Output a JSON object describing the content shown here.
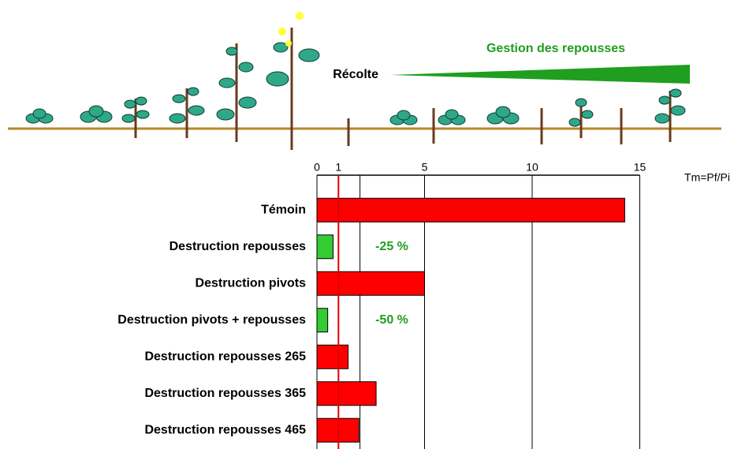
{
  "chart_data": {
    "type": "bar",
    "top_labels": {
      "harvest": "Récolte",
      "management": "Gestion des repousses",
      "management_color": "#1f9e1f"
    },
    "xlabel": "Tm=Pf/Pi",
    "categories": [
      "Témoin",
      "Destruction repousses",
      "Destruction pivots",
      "Destruction pivots + repousses",
      "Destruction repousses 265",
      "Destruction repousses 365",
      "Destruction repousses 465"
    ],
    "values": [
      14.3,
      0.75,
      5,
      0.5,
      1.45,
      2.75,
      1.95
    ],
    "colors": [
      "#ff0000",
      "#33cc33",
      "#ff0000",
      "#33cc33",
      "#ff0000",
      "#ff0000",
      "#ff0000"
    ],
    "annotations": [
      {
        "row": 1,
        "text": "-25 %"
      },
      {
        "row": 3,
        "text": "-50 %"
      }
    ],
    "annotation_color": "#1f9e1f",
    "xlim": [
      0,
      15.5
    ],
    "xticks": [
      0,
      1,
      5,
      10,
      15
    ],
    "minor_grid": [
      2
    ],
    "reference_value": 1,
    "reference_color": "#e00000",
    "grid": true
  }
}
